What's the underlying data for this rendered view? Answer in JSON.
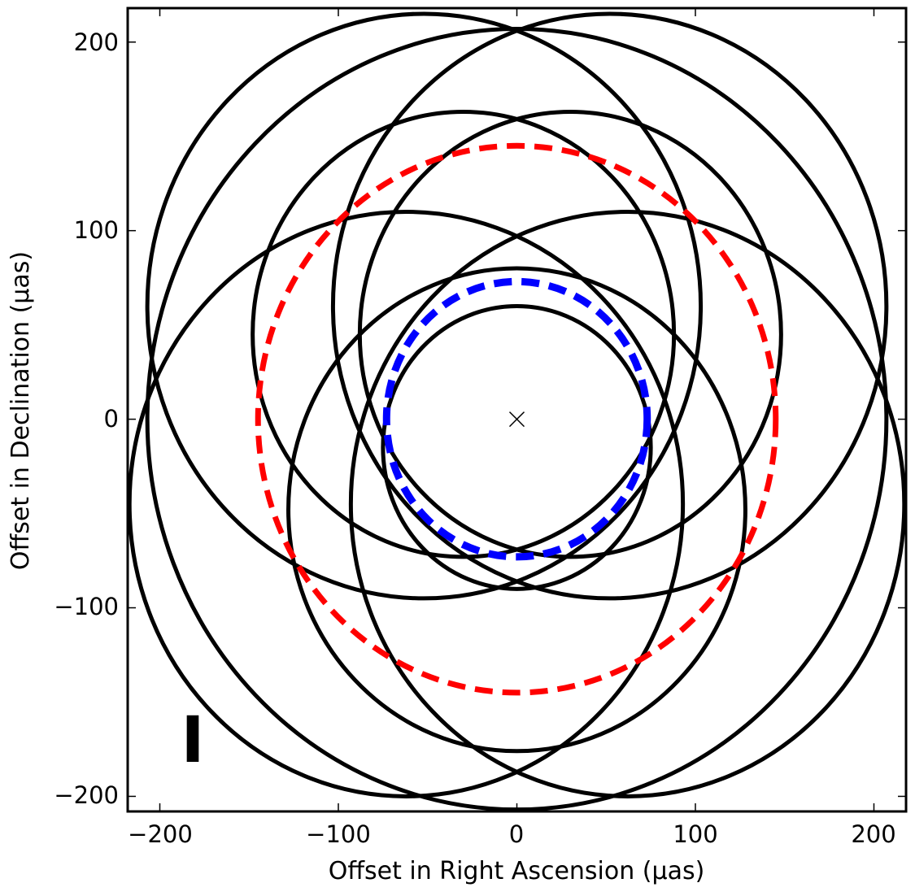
{
  "chart_data": {
    "type": "scatter",
    "title": "",
    "xlabel": "Offset in Right Ascension (μas)",
    "ylabel": "Offset in Declination (μas)",
    "xlim": [
      -218,
      218
    ],
    "ylim": [
      -208,
      218
    ],
    "xticks": [
      -200,
      -100,
      0,
      100,
      200
    ],
    "yticks": [
      -200,
      -100,
      0,
      100,
      200
    ],
    "xtick_labels": [
      "−200",
      "−100",
      "0",
      "100",
      "200"
    ],
    "ytick_labels": [
      "−200",
      "−100",
      "0",
      "100",
      "200"
    ],
    "panel_label": "I",
    "grid": false,
    "black_circles": [
      {
        "cx": 0,
        "cy": 0,
        "r": 207,
        "color": "#000000"
      },
      {
        "cx": -52,
        "cy": 60,
        "r": 155,
        "color": "#000000"
      },
      {
        "cx": 52,
        "cy": 60,
        "r": 155,
        "color": "#000000"
      },
      {
        "cx": -62,
        "cy": -45,
        "r": 155,
        "color": "#000000"
      },
      {
        "cx": 62,
        "cy": -45,
        "r": 155,
        "color": "#000000"
      },
      {
        "cx": -30,
        "cy": 45,
        "r": 118,
        "color": "#000000"
      },
      {
        "cx": 30,
        "cy": 45,
        "r": 118,
        "color": "#000000"
      },
      {
        "cx": 0,
        "cy": -48,
        "r": 128,
        "color": "#000000"
      },
      {
        "cx": 0,
        "cy": -15,
        "r": 75,
        "color": "#000000"
      }
    ],
    "dashed_circles": [
      {
        "cx": 0,
        "cy": 0,
        "r": 145,
        "color": "#ff0000"
      },
      {
        "cx": 0,
        "cy": 0,
        "r": 73,
        "color": "#0000ff"
      }
    ],
    "center_marker": {
      "x": 0,
      "y": 0,
      "symbol": "x",
      "color": "#000000"
    }
  }
}
